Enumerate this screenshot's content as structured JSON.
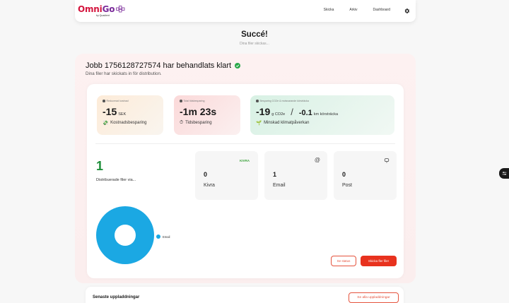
{
  "brand": {
    "name_part1": "Omni",
    "name_part2": "Go",
    "byline": "by Quadient"
  },
  "nav": {
    "links": [
      "Skicka",
      "Arkiv",
      "Dashboard"
    ],
    "settings_icon": "gear-icon"
  },
  "hero": {
    "title": "Succé!",
    "subtitle": "Dina filer skickas..."
  },
  "job": {
    "title": "Jobb 1756128727574 har behandlats klart",
    "subtitle": "Dina filer har skickats in för distribution."
  },
  "stats": {
    "cost": {
      "label": "Reducerad kostnad",
      "value": "-15",
      "unit": "SEK",
      "caption": "Kostnadsbesparing"
    },
    "time": {
      "label": "Total tidsbesparing",
      "value": "-1m 23s",
      "caption": "Tidsbesparing"
    },
    "co2": {
      "label": "Besparing CO2e & motsvarande körsträcka",
      "value": "-19",
      "unit": "g CO2e",
      "km_value": "-0.1",
      "km_unit": "km körsträcka",
      "caption": "Minskad klimatpåverkan"
    }
  },
  "distribution": {
    "count": "1",
    "label": "Distribuerade filer via..."
  },
  "channels": [
    {
      "badge": "KIVRA",
      "count": "0",
      "label": "Kivra"
    },
    {
      "icon": "at-icon",
      "count": "1",
      "label": "Email"
    },
    {
      "icon": "mailbox-icon",
      "count": "0",
      "label": "Post"
    }
  ],
  "chart_data": {
    "type": "pie",
    "categories": [
      "Email"
    ],
    "values": [
      1
    ],
    "colors": [
      "#1ba8e3"
    ]
  },
  "buttons": {
    "status": "Se status",
    "send": "Skicka fler filer",
    "all_uploads": "Se alla uppladdningar"
  },
  "uploads": {
    "title": "Senaste uppladdningar"
  },
  "colors": {
    "accent": "#e8321e",
    "green": "#1f8f3a",
    "email_blue": "#1ba8e3"
  }
}
